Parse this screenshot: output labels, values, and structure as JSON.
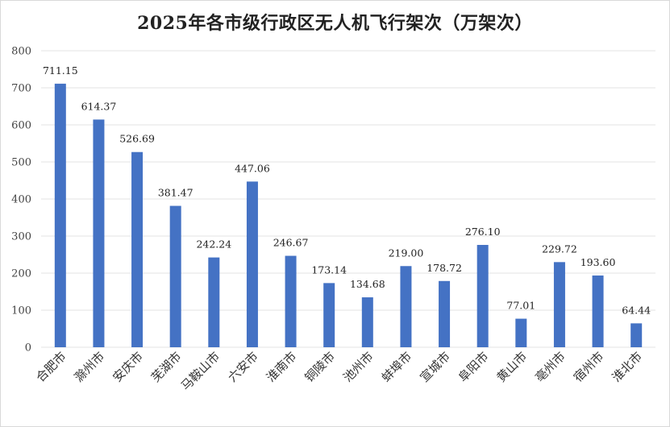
{
  "chart_data": {
    "type": "bar",
    "title": "2025年各市级行政区无人机飞行架次（万架次）",
    "xlabel": "",
    "ylabel": "",
    "categories": [
      "合肥市",
      "滁州市",
      "安庆市",
      "芜湖市",
      "马鞍山市",
      "六安市",
      "淮南市",
      "铜陵市",
      "池州市",
      "蚌埠市",
      "宣城市",
      "阜阳市",
      "黄山市",
      "亳州市",
      "宿州市",
      "淮北市"
    ],
    "values": [
      711.15,
      614.37,
      526.69,
      381.47,
      242.24,
      447.06,
      246.67,
      173.14,
      134.68,
      219.0,
      178.72,
      276.1,
      77.01,
      229.72,
      193.6,
      64.44
    ],
    "data_labels": [
      "711.15",
      "614.37",
      "526.69",
      "381.47",
      "242.24",
      "447.06",
      "246.67",
      "173.14",
      "134.68",
      "219.00",
      "178.72",
      "276.10",
      "77.01",
      "229.72",
      "193.60",
      "64.44"
    ],
    "ylim": [
      0,
      800
    ],
    "yticks": [
      "0",
      "100",
      "200",
      "300",
      "400",
      "500",
      "600",
      "700",
      "800"
    ],
    "grid": true,
    "bar_color": "#4472c4",
    "grid_color": "#e3e3e3"
  }
}
